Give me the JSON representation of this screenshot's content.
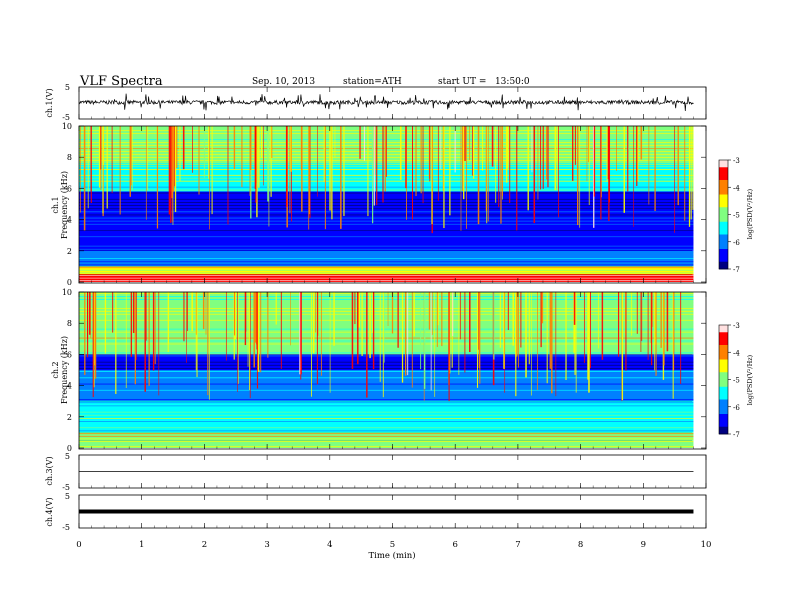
{
  "header": {
    "title": "VLF Spectra",
    "date": "Sep. 10, 2013",
    "station": "station=ATH",
    "start": "start UT =   13:50:0"
  },
  "colors": {
    "colormap": [
      "#000080",
      "#0000ff",
      "#0080ff",
      "#00ffff",
      "#80ff80",
      "#ffff00",
      "#ff8000",
      "#ff0000",
      "#ffe0e0"
    ],
    "trace": "#000000"
  },
  "chart_data": [
    {
      "type": "line",
      "panel": "ch1-waveform",
      "ylabel": "ch.1(V)",
      "ylim": [
        -5,
        5
      ],
      "yticks": [
        "5",
        "-5"
      ],
      "x_range_min": [
        0,
        9.8
      ],
      "description_values": {
        "baseline_v": 0.2,
        "noise_amplitude_v": 0.6,
        "spike_amplitude_v": 2.0
      }
    },
    {
      "type": "heatmap",
      "panel": "ch1-spectrogram",
      "ylabel": "Frequency (kHz)",
      "channel_label": "ch.1",
      "ylim": [
        0,
        10
      ],
      "yticks": [
        "0",
        "2",
        "4",
        "6",
        "8",
        "10"
      ],
      "colorbar": {
        "label": "log(PSD(V²/Hz)",
        "range": [
          -7,
          -3
        ],
        "ticks": [
          "-3",
          "-4",
          "-5",
          "-6",
          "-7"
        ]
      },
      "bands_khz": [
        {
          "from": 0,
          "to": 0.5,
          "log_psd": -3.4
        },
        {
          "from": 0.5,
          "to": 1.0,
          "log_psd": -4.6
        },
        {
          "from": 1.0,
          "to": 2.0,
          "log_psd": -5.8
        },
        {
          "from": 2.0,
          "to": 4.2,
          "log_psd": -6.3
        },
        {
          "from": 4.2,
          "to": 5.8,
          "log_psd": -6.7
        },
        {
          "from": 5.8,
          "to": 7.5,
          "log_psd": -5.3
        },
        {
          "from": 7.5,
          "to": 10.0,
          "log_psd": -4.8
        }
      ]
    },
    {
      "type": "heatmap",
      "panel": "ch2-spectrogram",
      "ylabel": "Frequency (kHz)",
      "channel_label": "ch.2",
      "ylim": [
        0,
        10
      ],
      "yticks": [
        "0",
        "2",
        "4",
        "6",
        "8",
        "10"
      ],
      "colorbar": {
        "label": "log(PSD(V²/Hz)",
        "range": [
          -7,
          -3
        ],
        "ticks": [
          "-3",
          "-4",
          "-5",
          "-6",
          "-7"
        ]
      },
      "bands_khz": [
        {
          "from": 0,
          "to": 0.5,
          "log_psd": -5.0
        },
        {
          "from": 0.5,
          "to": 1.0,
          "log_psd": -4.8
        },
        {
          "from": 1.0,
          "to": 3.0,
          "log_psd": -5.4
        },
        {
          "from": 3.0,
          "to": 5.0,
          "log_psd": -5.9
        },
        {
          "from": 5.0,
          "to": 6.0,
          "log_psd": -6.7
        },
        {
          "from": 6.0,
          "to": 10.0,
          "log_psd": -4.9
        }
      ]
    },
    {
      "type": "line",
      "panel": "ch3-waveform",
      "ylabel": "ch.3(V)",
      "ylim": [
        -5,
        5
      ],
      "yticks": [
        "5",
        "-5"
      ],
      "constant_value_v": 0
    },
    {
      "type": "line",
      "panel": "ch4-waveform",
      "ylabel": "ch.4(V)",
      "ylim": [
        -5,
        5
      ],
      "yticks": [
        "5",
        "-5"
      ],
      "constant_value_v": 0
    }
  ],
  "xaxis": {
    "label": "Time (min)",
    "range": [
      0,
      10
    ],
    "ticks": [
      "0",
      "1",
      "2",
      "3",
      "4",
      "5",
      "6",
      "7",
      "8",
      "9",
      "10"
    ]
  }
}
